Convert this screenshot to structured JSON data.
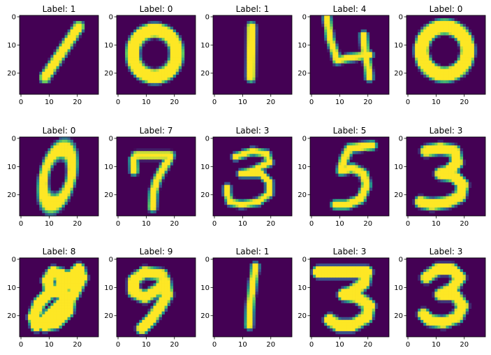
{
  "figure": {
    "background": "#ffffff",
    "title_prefix": "Label: ",
    "colormap": {
      "name": "viridis",
      "stops": [
        "#440154",
        "#3b528b",
        "#21918c",
        "#5ec962",
        "#fde725"
      ]
    }
  },
  "chart_data": [
    {
      "type": "heatmap",
      "title": "Label: 1",
      "label": 1,
      "image_size": [
        28,
        28
      ],
      "xticks": [
        0,
        10,
        20
      ],
      "yticks": [
        0,
        10,
        20
      ],
      "xlim": [
        0,
        27
      ],
      "ylim": [
        27,
        0
      ],
      "strokes": [
        [
          [
            9,
            22
          ],
          [
            21,
            4
          ]
        ]
      ],
      "width": 1.3
    },
    {
      "type": "heatmap",
      "title": "Label: 0",
      "label": 0,
      "image_size": [
        28,
        28
      ],
      "xticks": [
        0,
        10,
        20
      ],
      "yticks": [
        0,
        10,
        20
      ],
      "xlim": [
        0,
        27
      ],
      "ylim": [
        27,
        0
      ],
      "ellipses": [
        {
          "cx": 13.5,
          "cy": 13.5,
          "rx": 7.8,
          "ry": 8.2
        }
      ],
      "width": 1.9
    },
    {
      "type": "heatmap",
      "title": "Label: 1",
      "label": 1,
      "image_size": [
        28,
        28
      ],
      "xticks": [
        0,
        10,
        20
      ],
      "yticks": [
        0,
        10,
        20
      ],
      "xlim": [
        0,
        27
      ],
      "ylim": [
        27,
        0
      ],
      "strokes": [
        [
          [
            13.6,
            4
          ],
          [
            13.4,
            22
          ]
        ]
      ],
      "width": 1.0
    },
    {
      "type": "heatmap",
      "title": "Label: 4",
      "label": 4,
      "image_size": [
        28,
        28
      ],
      "xticks": [
        0,
        10,
        20
      ],
      "yticks": [
        0,
        10,
        20
      ],
      "xlim": [
        0,
        27
      ],
      "ylim": [
        27,
        0
      ],
      "strokes": [
        [
          [
            6,
            1
          ],
          [
            7,
            8
          ],
          [
            9,
            14
          ],
          [
            9.5,
            16
          ],
          [
            14,
            15
          ],
          [
            21,
            14
          ]
        ],
        [
          [
            19,
            7
          ],
          [
            19.5,
            13
          ],
          [
            20.5,
            18
          ],
          [
            21,
            22
          ]
        ]
      ],
      "width": 0.8
    },
    {
      "type": "heatmap",
      "title": "Label: 0",
      "label": 0,
      "image_size": [
        28,
        28
      ],
      "xticks": [
        0,
        10,
        20
      ],
      "yticks": [
        0,
        10,
        20
      ],
      "xlim": [
        0,
        27
      ],
      "ylim": [
        27,
        0
      ],
      "ellipses": [
        {
          "cx": 13.5,
          "cy": 12.5,
          "rx": 8.2,
          "ry": 8.5
        }
      ],
      "width": 2.0
    },
    {
      "type": "heatmap",
      "title": "Label: 0",
      "label": 0,
      "image_size": [
        28,
        28
      ],
      "xticks": [
        0,
        10,
        20
      ],
      "yticks": [
        0,
        10,
        20
      ],
      "xlim": [
        0,
        27
      ],
      "ylim": [
        27,
        0
      ],
      "ellipses": [
        {
          "cx": 13.5,
          "cy": 14,
          "rx": 4.8,
          "ry": 10,
          "angle": 14
        }
      ],
      "width": 1.1
    },
    {
      "type": "heatmap",
      "title": "Label: 7",
      "label": 7,
      "image_size": [
        28,
        28
      ],
      "xticks": [
        0,
        10,
        20
      ],
      "yticks": [
        0,
        10,
        20
      ],
      "xlim": [
        0,
        27
      ],
      "ylim": [
        27,
        0
      ],
      "strokes": [
        [
          [
            6,
            8
          ],
          [
            7,
            6.5
          ],
          [
            19,
            6.5
          ],
          [
            18.5,
            8
          ],
          [
            16,
            12
          ],
          [
            14,
            16
          ],
          [
            13,
            20
          ],
          [
            12.7,
            25
          ]
        ],
        [
          [
            6,
            8
          ],
          [
            6.2,
            12
          ]
        ]
      ],
      "width": 0.9
    },
    {
      "type": "heatmap",
      "title": "Label: 3",
      "label": 3,
      "image_size": [
        28,
        28
      ],
      "xticks": [
        0,
        10,
        20
      ],
      "yticks": [
        0,
        10,
        20
      ],
      "xlim": [
        0,
        27
      ],
      "ylim": [
        27,
        0
      ],
      "strokes": [
        [
          [
            8,
            7
          ],
          [
            14,
            5
          ],
          [
            19,
            6
          ],
          [
            20,
            9
          ],
          [
            14,
            12
          ],
          [
            10,
            13
          ],
          [
            17,
            13
          ],
          [
            20,
            16
          ],
          [
            20,
            20
          ],
          [
            16,
            23
          ],
          [
            10,
            24
          ],
          [
            6,
            23
          ],
          [
            5,
            20
          ],
          [
            5,
            18
          ]
        ]
      ],
      "width": 0.7
    },
    {
      "type": "heatmap",
      "title": "Label: 5",
      "label": 5,
      "image_size": [
        28,
        28
      ],
      "xticks": [
        0,
        10,
        20
      ],
      "yticks": [
        0,
        10,
        20
      ],
      "xlim": [
        0,
        27
      ],
      "ylim": [
        27,
        0
      ],
      "strokes": [
        [
          [
            22,
            3
          ],
          [
            14,
            4
          ],
          [
            12,
            8
          ],
          [
            11,
            12
          ],
          [
            15,
            11
          ],
          [
            19,
            13
          ],
          [
            20,
            17
          ],
          [
            18,
            22
          ],
          [
            13,
            24
          ],
          [
            9,
            24
          ]
        ]
      ],
      "width": 1.0
    },
    {
      "type": "heatmap",
      "title": "Label: 3",
      "label": 3,
      "image_size": [
        28,
        28
      ],
      "xticks": [
        0,
        10,
        20
      ],
      "yticks": [
        0,
        10,
        20
      ],
      "xlim": [
        0,
        27
      ],
      "ylim": [
        27,
        0
      ],
      "strokes": [
        [
          [
            7,
            5
          ],
          [
            12,
            4
          ],
          [
            17,
            5
          ],
          [
            18,
            9
          ],
          [
            15,
            12
          ],
          [
            12,
            13
          ],
          [
            17,
            14
          ],
          [
            20,
            17
          ],
          [
            19,
            21
          ],
          [
            15,
            23
          ],
          [
            9,
            24
          ],
          [
            5,
            23
          ]
        ]
      ],
      "width": 1.5
    },
    {
      "type": "heatmap",
      "title": "Label: 8",
      "label": 8,
      "image_size": [
        28,
        28
      ],
      "xticks": [
        0,
        10,
        20
      ],
      "yticks": [
        0,
        10,
        20
      ],
      "xlim": [
        0,
        27
      ],
      "ylim": [
        27,
        0
      ],
      "strokes": [
        [
          [
            15,
            12
          ],
          [
            19,
            6
          ],
          [
            21,
            4
          ],
          [
            22,
            7
          ],
          [
            19,
            13
          ],
          [
            15,
            16
          ],
          [
            12,
            19
          ],
          [
            9,
            22
          ],
          [
            6,
            24
          ],
          [
            5,
            21
          ],
          [
            7,
            16
          ],
          [
            11,
            12
          ],
          [
            15,
            12
          ],
          [
            18,
            14
          ],
          [
            17,
            19
          ],
          [
            13,
            23
          ],
          [
            9,
            24
          ]
        ],
        [
          [
            11,
            12
          ],
          [
            10,
            8
          ],
          [
            12,
            5
          ],
          [
            15,
            6
          ],
          [
            15,
            10
          ]
        ]
      ],
      "width": 1.6
    },
    {
      "type": "heatmap",
      "title": "Label: 9",
      "label": 9,
      "image_size": [
        28,
        28
      ],
      "xticks": [
        0,
        10,
        20
      ],
      "yticks": [
        0,
        10,
        20
      ],
      "xlim": [
        0,
        27
      ],
      "ylim": [
        27,
        0
      ],
      "strokes": [
        [
          [
            16,
            6
          ],
          [
            10,
            5
          ],
          [
            6,
            8
          ],
          [
            6,
            12
          ],
          [
            10,
            14
          ],
          [
            15,
            11
          ],
          [
            17,
            8
          ],
          [
            18,
            13
          ],
          [
            15,
            18
          ],
          [
            12,
            22
          ],
          [
            9,
            25
          ]
        ]
      ],
      "width": 1.5
    },
    {
      "type": "heatmap",
      "title": "Label: 1",
      "label": 1,
      "image_size": [
        28,
        28
      ],
      "xticks": [
        0,
        10,
        20
      ],
      "yticks": [
        0,
        10,
        20
      ],
      "xlim": [
        0,
        27
      ],
      "ylim": [
        27,
        0
      ],
      "strokes": [
        [
          [
            15,
            3
          ],
          [
            14,
            10
          ],
          [
            13.5,
            14
          ],
          [
            13,
            19
          ],
          [
            12.8,
            24
          ]
        ]
      ],
      "width": 0.8
    },
    {
      "type": "heatmap",
      "title": "Label: 3",
      "label": 3,
      "image_size": [
        28,
        28
      ],
      "xticks": [
        0,
        10,
        20
      ],
      "yticks": [
        0,
        10,
        20
      ],
      "xlim": [
        0,
        27
      ],
      "ylim": [
        27,
        0
      ],
      "strokes": [
        [
          [
            3,
            5
          ],
          [
            8,
            5
          ],
          [
            14,
            5
          ],
          [
            20,
            5
          ],
          [
            19,
            9
          ],
          [
            15,
            12
          ],
          [
            12,
            13
          ],
          [
            17,
            14
          ],
          [
            21,
            17
          ],
          [
            20,
            21
          ],
          [
            15,
            24
          ],
          [
            10,
            24
          ],
          [
            7,
            22
          ]
        ]
      ],
      "width": 1.6
    },
    {
      "type": "heatmap",
      "title": "Label: 3",
      "label": 3,
      "image_size": [
        28,
        28
      ],
      "xticks": [
        0,
        10,
        20
      ],
      "yticks": [
        0,
        10,
        20
      ],
      "xlim": [
        0,
        27
      ],
      "ylim": [
        27,
        0
      ],
      "strokes": [
        [
          [
            7,
            7
          ],
          [
            11,
            4
          ],
          [
            16,
            4
          ],
          [
            19,
            7
          ],
          [
            16,
            11
          ],
          [
            12,
            13
          ],
          [
            17,
            13
          ],
          [
            20,
            17
          ],
          [
            18,
            21
          ],
          [
            13,
            23
          ],
          [
            8,
            22
          ],
          [
            6,
            20
          ]
        ]
      ],
      "width": 1.5
    }
  ]
}
